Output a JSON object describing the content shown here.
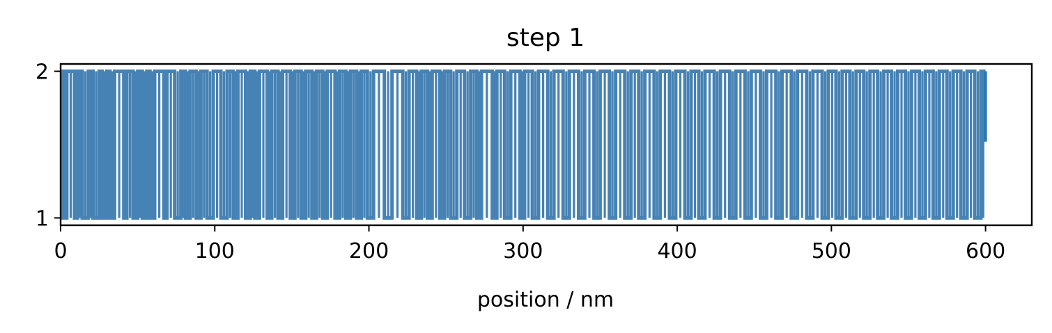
{
  "chart_data": {
    "type": "line",
    "title": "step 1",
    "xlabel": "position / nm",
    "ylabel": "",
    "xlim": [
      0,
      630
    ],
    "ylim": [
      0.95,
      2.05
    ],
    "x_ticks": [
      0,
      100,
      200,
      300,
      400,
      500,
      600
    ],
    "x_tick_labels": [
      "0",
      "100",
      "200",
      "300",
      "400",
      "500",
      "600"
    ],
    "y_ticks": [
      1,
      2
    ],
    "y_tick_labels": [
      "1",
      "2"
    ],
    "grid": false,
    "legend": "none",
    "series_color": "#4682b4",
    "highlight_color": "#1f77b4",
    "description_of_values": "Trace switches rapidly between level 1 and level 2 across positions 0-600 nm; state runs below listed as [start, end, level].",
    "state_runs": [
      [
        0,
        1,
        1
      ],
      [
        1,
        2,
        2
      ],
      [
        2,
        4,
        1
      ],
      [
        4,
        9,
        2
      ],
      [
        9,
        11,
        1
      ],
      [
        11,
        14,
        2
      ],
      [
        14,
        18,
        1
      ],
      [
        18,
        21,
        2
      ],
      [
        21,
        25,
        1
      ],
      [
        25,
        27,
        2
      ],
      [
        27,
        30,
        1
      ],
      [
        30,
        32,
        2
      ],
      [
        32,
        35,
        1
      ],
      [
        35,
        41,
        2
      ],
      [
        41,
        43,
        1
      ],
      [
        43,
        47,
        2
      ],
      [
        47,
        50,
        1
      ],
      [
        50,
        53,
        2
      ],
      [
        53,
        56,
        1
      ],
      [
        56,
        58,
        2
      ],
      [
        58,
        61,
        1
      ],
      [
        61,
        67,
        2
      ],
      [
        67,
        69,
        1
      ],
      [
        69,
        74,
        2
      ],
      [
        74,
        78,
        1
      ],
      [
        78,
        81,
        2
      ],
      [
        81,
        84,
        1
      ],
      [
        84,
        88,
        2
      ],
      [
        88,
        91,
        1
      ],
      [
        91,
        95,
        2
      ],
      [
        95,
        99,
        1
      ],
      [
        99,
        104,
        2
      ],
      [
        104,
        108,
        1
      ],
      [
        108,
        112,
        2
      ],
      [
        112,
        115,
        1
      ],
      [
        115,
        120,
        2
      ],
      [
        120,
        123,
        1
      ],
      [
        123,
        126,
        2
      ],
      [
        126,
        129,
        1
      ],
      [
        129,
        134,
        2
      ],
      [
        134,
        137,
        1
      ],
      [
        137,
        141,
        2
      ],
      [
        141,
        144,
        1
      ],
      [
        144,
        149,
        2
      ],
      [
        149,
        152,
        1
      ],
      [
        152,
        156,
        2
      ],
      [
        156,
        159,
        1
      ],
      [
        159,
        163,
        2
      ],
      [
        163,
        166,
        1
      ],
      [
        166,
        170,
        2
      ],
      [
        170,
        173,
        1
      ],
      [
        173,
        178,
        2
      ],
      [
        178,
        181,
        1
      ],
      [
        181,
        185,
        2
      ],
      [
        185,
        188,
        1
      ],
      [
        188,
        192,
        2
      ],
      [
        192,
        195,
        1
      ],
      [
        195,
        199,
        2
      ],
      [
        199,
        203,
        1
      ],
      [
        203,
        210,
        2
      ],
      [
        210,
        215,
        1
      ],
      [
        215,
        222,
        2
      ],
      [
        222,
        226,
        1
      ],
      [
        226,
        231,
        2
      ],
      [
        231,
        234,
        1
      ],
      [
        234,
        238,
        2
      ],
      [
        238,
        241,
        1
      ],
      [
        241,
        246,
        2
      ],
      [
        246,
        249,
        1
      ],
      [
        249,
        253,
        2
      ],
      [
        253,
        257,
        1
      ],
      [
        257,
        262,
        2
      ],
      [
        262,
        266,
        1
      ],
      [
        266,
        270,
        2
      ],
      [
        270,
        273,
        1
      ],
      [
        273,
        280,
        2
      ],
      [
        280,
        283,
        1
      ],
      [
        283,
        288,
        2
      ],
      [
        288,
        292,
        1
      ],
      [
        292,
        298,
        2
      ],
      [
        298,
        301,
        1
      ],
      [
        301,
        306,
        2
      ],
      [
        306,
        310,
        1
      ],
      [
        310,
        316,
        2
      ],
      [
        316,
        320,
        1
      ],
      [
        320,
        326,
        2
      ],
      [
        326,
        330,
        1
      ],
      [
        330,
        336,
        2
      ],
      [
        336,
        340,
        1
      ],
      [
        340,
        346,
        2
      ],
      [
        346,
        350,
        1
      ],
      [
        350,
        356,
        2
      ],
      [
        356,
        360,
        1
      ],
      [
        360,
        366,
        2
      ],
      [
        366,
        370,
        1
      ],
      [
        370,
        375,
        2
      ],
      [
        375,
        379,
        1
      ],
      [
        379,
        385,
        2
      ],
      [
        385,
        389,
        1
      ],
      [
        389,
        395,
        2
      ],
      [
        395,
        399,
        1
      ],
      [
        399,
        405,
        2
      ],
      [
        405,
        409,
        1
      ],
      [
        409,
        414,
        2
      ],
      [
        414,
        418,
        1
      ],
      [
        418,
        424,
        2
      ],
      [
        424,
        428,
        1
      ],
      [
        428,
        434,
        2
      ],
      [
        434,
        438,
        1
      ],
      [
        438,
        444,
        2
      ],
      [
        444,
        448,
        1
      ],
      [
        448,
        454,
        2
      ],
      [
        454,
        458,
        1
      ],
      [
        458,
        464,
        2
      ],
      [
        464,
        468,
        1
      ],
      [
        468,
        474,
        2
      ],
      [
        474,
        478,
        1
      ],
      [
        478,
        484,
        2
      ],
      [
        484,
        488,
        1
      ],
      [
        488,
        494,
        2
      ],
      [
        494,
        498,
        1
      ],
      [
        498,
        503,
        2
      ],
      [
        503,
        507,
        1
      ],
      [
        507,
        512,
        2
      ],
      [
        512,
        516,
        1
      ],
      [
        516,
        521,
        2
      ],
      [
        521,
        525,
        1
      ],
      [
        525,
        530,
        2
      ],
      [
        530,
        534,
        1
      ],
      [
        534,
        539,
        2
      ],
      [
        539,
        543,
        1
      ],
      [
        543,
        548,
        2
      ],
      [
        548,
        552,
        1
      ],
      [
        552,
        557,
        2
      ],
      [
        557,
        561,
        1
      ],
      [
        561,
        566,
        2
      ],
      [
        566,
        570,
        1
      ],
      [
        570,
        575,
        2
      ],
      [
        575,
        579,
        1
      ],
      [
        579,
        584,
        2
      ],
      [
        584,
        588,
        1
      ],
      [
        588,
        593,
        2
      ],
      [
        593,
        597,
        1
      ],
      [
        597,
        600,
        2
      ]
    ]
  }
}
